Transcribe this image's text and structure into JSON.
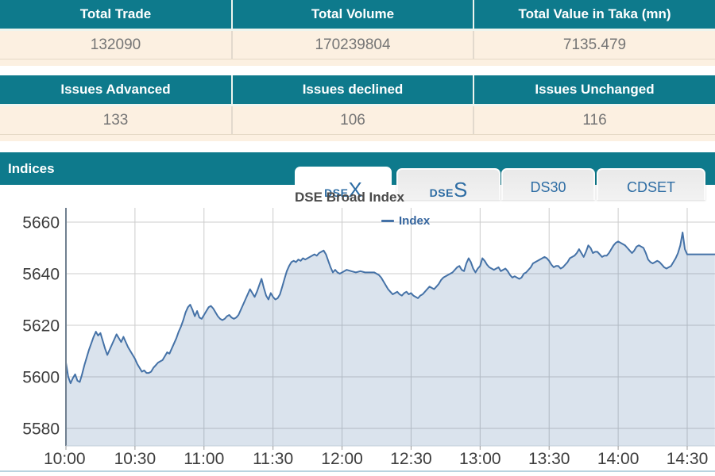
{
  "summary_table": {
    "headers": [
      "Total Trade",
      "Total Volume",
      "Total Value in Taka (mn)"
    ],
    "values": [
      "132090",
      "170239804",
      "7135.479"
    ]
  },
  "issues_table": {
    "headers": [
      "Issues Advanced",
      "Issues declined",
      "Issues Unchanged"
    ],
    "values": [
      "133",
      "106",
      "116"
    ]
  },
  "indices_section": {
    "title": "Indices",
    "tabs": [
      {
        "label": "DSEX",
        "prefix": "DSE",
        "suffix": "X",
        "active": true
      },
      {
        "label": "DSES",
        "prefix": "DSE",
        "suffix": "S",
        "active": false
      },
      {
        "label": "DS30",
        "prefix": "DS30",
        "suffix": "",
        "active": false
      },
      {
        "label": "CDSET",
        "prefix": "CDSET",
        "suffix": "",
        "active": false
      }
    ]
  },
  "colors": {
    "teal_header": "#0e7a8c",
    "cream_row": "#fcf0e1",
    "tab_text_blue": "#2e6da4",
    "series_line": "#4572a7",
    "series_fill": "rgba(69,114,167,0.20)",
    "grid_line": "#cccccc",
    "axis_text": "#3c3c3c",
    "bottom_divider": "#b9d3e0"
  },
  "chart_data": {
    "type": "area",
    "title": "DSE Broad Index",
    "legend": [
      "Index"
    ],
    "legend_position": "top-center",
    "grid": true,
    "x_axis": {
      "unit": "time of day (minutes after 10:00)",
      "tick_labels": [
        "10:00",
        "10:30",
        "11:00",
        "11:30",
        "12:00",
        "12:30",
        "13:00",
        "13:30",
        "14:00",
        "14:30"
      ],
      "tick_minutes": [
        0,
        30,
        60,
        90,
        120,
        150,
        180,
        210,
        240,
        270
      ]
    },
    "y_axis": {
      "ticks": [
        5580,
        5600,
        5620,
        5640,
        5660
      ],
      "tick_top_value": 5660,
      "ylim_plotted": [
        5573,
        5665.5
      ]
    },
    "series": [
      {
        "name": "Index",
        "color": "#4572a7",
        "points": [
          [
            0,
            5605.5
          ],
          [
            1,
            5600
          ],
          [
            2,
            5597.5
          ],
          [
            3,
            5599.5
          ],
          [
            4,
            5601
          ],
          [
            5,
            5598.5
          ],
          [
            6,
            5598
          ],
          [
            7,
            5601
          ],
          [
            8,
            5604.5
          ],
          [
            9,
            5607.5
          ],
          [
            10,
            5610.5
          ],
          [
            11,
            5613
          ],
          [
            12,
            5615.5
          ],
          [
            13,
            5617.5
          ],
          [
            14,
            5616
          ],
          [
            15,
            5617
          ],
          [
            16,
            5614
          ],
          [
            17,
            5611
          ],
          [
            18,
            5608.5
          ],
          [
            19,
            5610.5
          ],
          [
            20,
            5612.5
          ],
          [
            21,
            5614.5
          ],
          [
            22,
            5616.5
          ],
          [
            23,
            5615
          ],
          [
            24,
            5613.5
          ],
          [
            25,
            5615.5
          ],
          [
            26,
            5613.5
          ],
          [
            27,
            5611.5
          ],
          [
            28,
            5610
          ],
          [
            29,
            5608.5
          ],
          [
            30,
            5607
          ],
          [
            31,
            5605
          ],
          [
            32,
            5603.5
          ],
          [
            33,
            5602
          ],
          [
            34,
            5602.5
          ],
          [
            35,
            5601.5
          ],
          [
            36,
            5601.5
          ],
          [
            37,
            5602
          ],
          [
            38,
            5603.5
          ],
          [
            39,
            5604.5
          ],
          [
            40,
            5605.5
          ],
          [
            41,
            5606
          ],
          [
            42,
            5606.5
          ],
          [
            43,
            5608
          ],
          [
            44,
            5609.5
          ],
          [
            45,
            5609
          ],
          [
            46,
            5611
          ],
          [
            47,
            5613
          ],
          [
            48,
            5615
          ],
          [
            49,
            5617.5
          ],
          [
            50,
            5619.5
          ],
          [
            51,
            5622
          ],
          [
            52,
            5625
          ],
          [
            53,
            5627
          ],
          [
            54,
            5628
          ],
          [
            55,
            5626
          ],
          [
            56,
            5623.5
          ],
          [
            57,
            5625.5
          ],
          [
            58,
            5623
          ],
          [
            59,
            5622.5
          ],
          [
            60,
            5624
          ],
          [
            61,
            5625.5
          ],
          [
            62,
            5627
          ],
          [
            63,
            5627.5
          ],
          [
            64,
            5626.5
          ],
          [
            65,
            5625
          ],
          [
            66,
            5623.5
          ],
          [
            67,
            5622.5
          ],
          [
            68,
            5622
          ],
          [
            69,
            5622.5
          ],
          [
            70,
            5623.5
          ],
          [
            71,
            5624
          ],
          [
            72,
            5623
          ],
          [
            73,
            5622.5
          ],
          [
            74,
            5623
          ],
          [
            75,
            5624
          ],
          [
            76,
            5626
          ],
          [
            77,
            5628
          ],
          [
            78,
            5630
          ],
          [
            79,
            5632
          ],
          [
            80,
            5634
          ],
          [
            81,
            5632.5
          ],
          [
            82,
            5631
          ],
          [
            83,
            5633
          ],
          [
            84,
            5635.5
          ],
          [
            85,
            5638
          ],
          [
            86,
            5634.5
          ],
          [
            87,
            5631.5
          ],
          [
            88,
            5630
          ],
          [
            89,
            5632.5
          ],
          [
            90,
            5631
          ],
          [
            91,
            5630
          ],
          [
            92,
            5630.5
          ],
          [
            93,
            5632
          ],
          [
            94,
            5635
          ],
          [
            95,
            5638
          ],
          [
            96,
            5641
          ],
          [
            97,
            5643
          ],
          [
            98,
            5644.5
          ],
          [
            99,
            5645
          ],
          [
            100,
            5644.5
          ],
          [
            101,
            5645.5
          ],
          [
            102,
            5645
          ],
          [
            103,
            5646
          ],
          [
            104,
            5645.5
          ],
          [
            105,
            5646
          ],
          [
            106,
            5646.5
          ],
          [
            107,
            5647
          ],
          [
            108,
            5647.5
          ],
          [
            109,
            5647
          ],
          [
            110,
            5648
          ],
          [
            111,
            5648.5
          ],
          [
            112,
            5649
          ],
          [
            113,
            5647.5
          ],
          [
            114,
            5645
          ],
          [
            115,
            5642.5
          ],
          [
            116,
            5640.5
          ],
          [
            117,
            5641.5
          ],
          [
            118,
            5640.5
          ],
          [
            119,
            5640
          ],
          [
            120,
            5640.5
          ],
          [
            122,
            5641.5
          ],
          [
            124,
            5641
          ],
          [
            126,
            5640.5
          ],
          [
            128,
            5641
          ],
          [
            130,
            5640.5
          ],
          [
            132,
            5640.5
          ],
          [
            134,
            5640.5
          ],
          [
            135,
            5640
          ],
          [
            136,
            5639.5
          ],
          [
            137,
            5638.5
          ],
          [
            138,
            5637
          ],
          [
            139,
            5635.5
          ],
          [
            140,
            5634
          ],
          [
            141,
            5633
          ],
          [
            142,
            5632
          ],
          [
            143,
            5632.5
          ],
          [
            144,
            5633
          ],
          [
            145,
            5632
          ],
          [
            146,
            5631.5
          ],
          [
            147,
            5632.5
          ],
          [
            148,
            5633
          ],
          [
            149,
            5632
          ],
          [
            150,
            5632.5
          ],
          [
            151,
            5631.5
          ],
          [
            152,
            5631
          ],
          [
            153,
            5630.5
          ],
          [
            154,
            5631.5
          ],
          [
            155,
            5632
          ],
          [
            156,
            5633
          ],
          [
            157,
            5634
          ],
          [
            158,
            5635
          ],
          [
            159,
            5634.5
          ],
          [
            160,
            5634
          ],
          [
            161,
            5635
          ],
          [
            162,
            5636
          ],
          [
            163,
            5637.5
          ],
          [
            164,
            5638.5
          ],
          [
            165,
            5639
          ],
          [
            166,
            5639.5
          ],
          [
            167,
            5640
          ],
          [
            168,
            5640.5
          ],
          [
            169,
            5641.5
          ],
          [
            170,
            5642.5
          ],
          [
            171,
            5643
          ],
          [
            172,
            5641.5
          ],
          [
            173,
            5641
          ],
          [
            174,
            5644
          ],
          [
            175,
            5646
          ],
          [
            176,
            5644.5
          ],
          [
            177,
            5642
          ],
          [
            178,
            5640.5
          ],
          [
            179,
            5642
          ],
          [
            180,
            5643
          ],
          [
            181,
            5646
          ],
          [
            182,
            5645
          ],
          [
            183,
            5643.5
          ],
          [
            184,
            5642.5
          ],
          [
            185,
            5642
          ],
          [
            186,
            5641.5
          ],
          [
            187,
            5642
          ],
          [
            188,
            5642.5
          ],
          [
            189,
            5641
          ],
          [
            190,
            5641.5
          ],
          [
            191,
            5642
          ],
          [
            192,
            5641
          ],
          [
            193,
            5639.5
          ],
          [
            194,
            5638.5
          ],
          [
            195,
            5639
          ],
          [
            196,
            5638.5
          ],
          [
            197,
            5638
          ],
          [
            198,
            5638.5
          ],
          [
            199,
            5640
          ],
          [
            200,
            5640.5
          ],
          [
            201,
            5641.5
          ],
          [
            202,
            5642.5
          ],
          [
            203,
            5644
          ],
          [
            204,
            5644.5
          ],
          [
            205,
            5645
          ],
          [
            206,
            5645.5
          ],
          [
            207,
            5646
          ],
          [
            208,
            5646.5
          ],
          [
            209,
            5646
          ],
          [
            210,
            5645
          ],
          [
            211,
            5643.5
          ],
          [
            212,
            5642.5
          ],
          [
            213,
            5643
          ],
          [
            214,
            5643
          ],
          [
            215,
            5642
          ],
          [
            216,
            5642.5
          ],
          [
            217,
            5643.5
          ],
          [
            218,
            5644.5
          ],
          [
            219,
            5646
          ],
          [
            220,
            5646.5
          ],
          [
            221,
            5647
          ],
          [
            222,
            5648
          ],
          [
            223,
            5649.5
          ],
          [
            224,
            5648
          ],
          [
            225,
            5646.5
          ],
          [
            226,
            5648.5
          ],
          [
            227,
            5651
          ],
          [
            228,
            5650
          ],
          [
            229,
            5648
          ],
          [
            230,
            5648.5
          ],
          [
            231,
            5648.5
          ],
          [
            232,
            5647.5
          ],
          [
            233,
            5646.5
          ],
          [
            234,
            5647
          ],
          [
            235,
            5647
          ],
          [
            236,
            5648
          ],
          [
            237,
            5649.5
          ],
          [
            238,
            5651
          ],
          [
            239,
            5652
          ],
          [
            240,
            5652.5
          ],
          [
            241,
            5652
          ],
          [
            242,
            5651.5
          ],
          [
            243,
            5651
          ],
          [
            244,
            5650
          ],
          [
            245,
            5649
          ],
          [
            246,
            5648
          ],
          [
            247,
            5649
          ],
          [
            248,
            5650.5
          ],
          [
            249,
            5651
          ],
          [
            250,
            5650.5
          ],
          [
            251,
            5650
          ],
          [
            252,
            5648
          ],
          [
            253,
            5645.5
          ],
          [
            254,
            5644.5
          ],
          [
            255,
            5644
          ],
          [
            256,
            5644.5
          ],
          [
            257,
            5645
          ],
          [
            258,
            5644.5
          ],
          [
            259,
            5643.5
          ],
          [
            260,
            5642.5
          ],
          [
            261,
            5642
          ],
          [
            262,
            5642.5
          ],
          [
            263,
            5643
          ],
          [
            264,
            5644.5
          ],
          [
            265,
            5646
          ],
          [
            266,
            5648
          ],
          [
            267,
            5651
          ],
          [
            268,
            5656
          ],
          [
            269,
            5649.5
          ],
          [
            270,
            5647.5
          ],
          [
            274,
            5647.5
          ],
          [
            278,
            5647.5
          ],
          [
            282,
            5647.5
          ]
        ]
      }
    ]
  }
}
